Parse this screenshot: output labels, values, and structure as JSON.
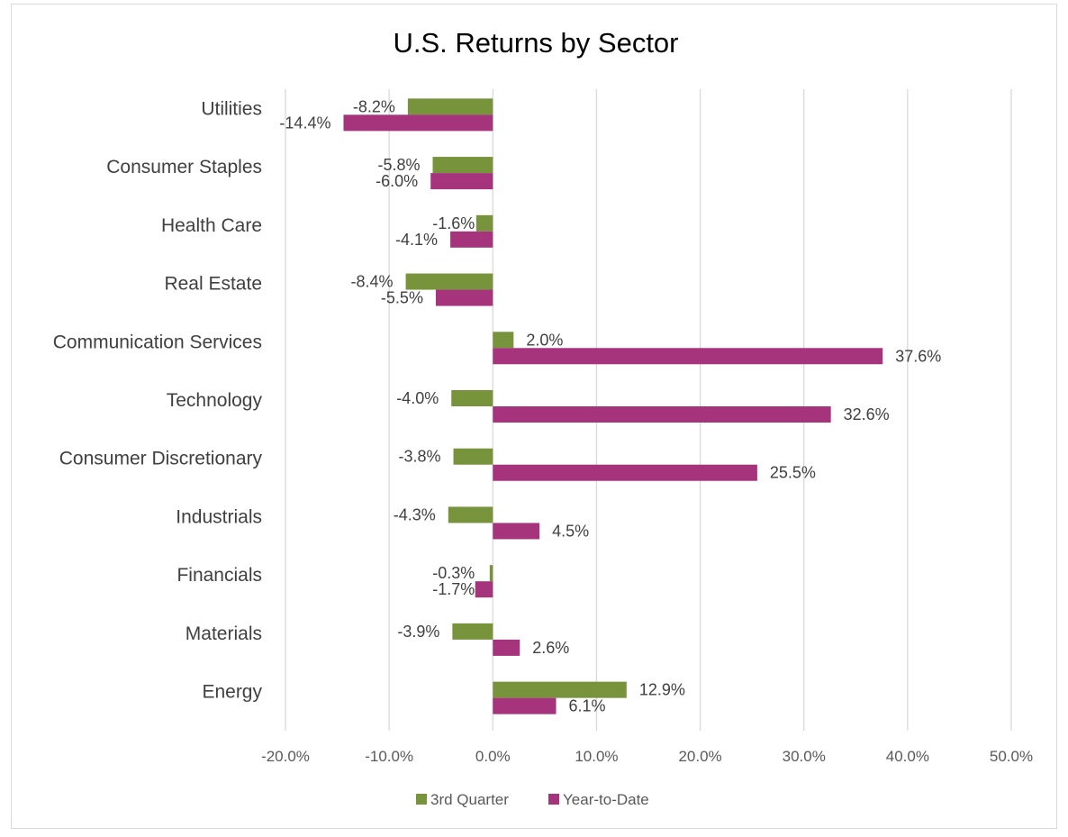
{
  "chart_data": {
    "type": "bar",
    "orientation": "horizontal",
    "title": "U.S. Returns by Sector",
    "categories": [
      "Utilities",
      "Consumer Staples",
      "Health Care",
      "Real Estate",
      "Communication Services",
      "Technology",
      "Consumer Discretionary",
      "Industrials",
      "Financials",
      "Materials",
      "Energy"
    ],
    "series": [
      {
        "name": "3rd Quarter",
        "color": "#77933c",
        "values": [
          -8.2,
          -5.8,
          -1.6,
          -8.4,
          2.0,
          -4.0,
          -3.8,
          -4.3,
          -0.3,
          -3.9,
          12.9
        ],
        "labels": [
          "-8.2%",
          "-5.8%",
          "-1.6%",
          "-8.4%",
          "2.0%",
          "-4.0%",
          "-3.8%",
          "-4.3%",
          "-0.3%",
          "-3.9%",
          "12.9%"
        ]
      },
      {
        "name": "Year-to-Date",
        "color": "#a5347c",
        "values": [
          -14.4,
          -6.0,
          -4.1,
          -5.5,
          37.6,
          32.6,
          25.5,
          4.5,
          -1.7,
          2.6,
          6.1
        ],
        "labels": [
          "-14.4%",
          "-6.0%",
          "-4.1%",
          "-5.5%",
          "37.6%",
          "32.6%",
          "25.5%",
          "4.5%",
          "-1.7%",
          "2.6%",
          "6.1%"
        ]
      }
    ],
    "xlim": [
      -20,
      50
    ],
    "xticks": [
      -20,
      -10,
      0,
      10,
      20,
      30,
      40,
      50
    ],
    "xtick_labels": [
      "-20.0%",
      "-10.0%",
      "0.0%",
      "10.0%",
      "20.0%",
      "30.0%",
      "40.0%",
      "50.0%"
    ],
    "xlabel": "",
    "ylabel": "",
    "grid": "vertical",
    "legend": "bottom"
  }
}
